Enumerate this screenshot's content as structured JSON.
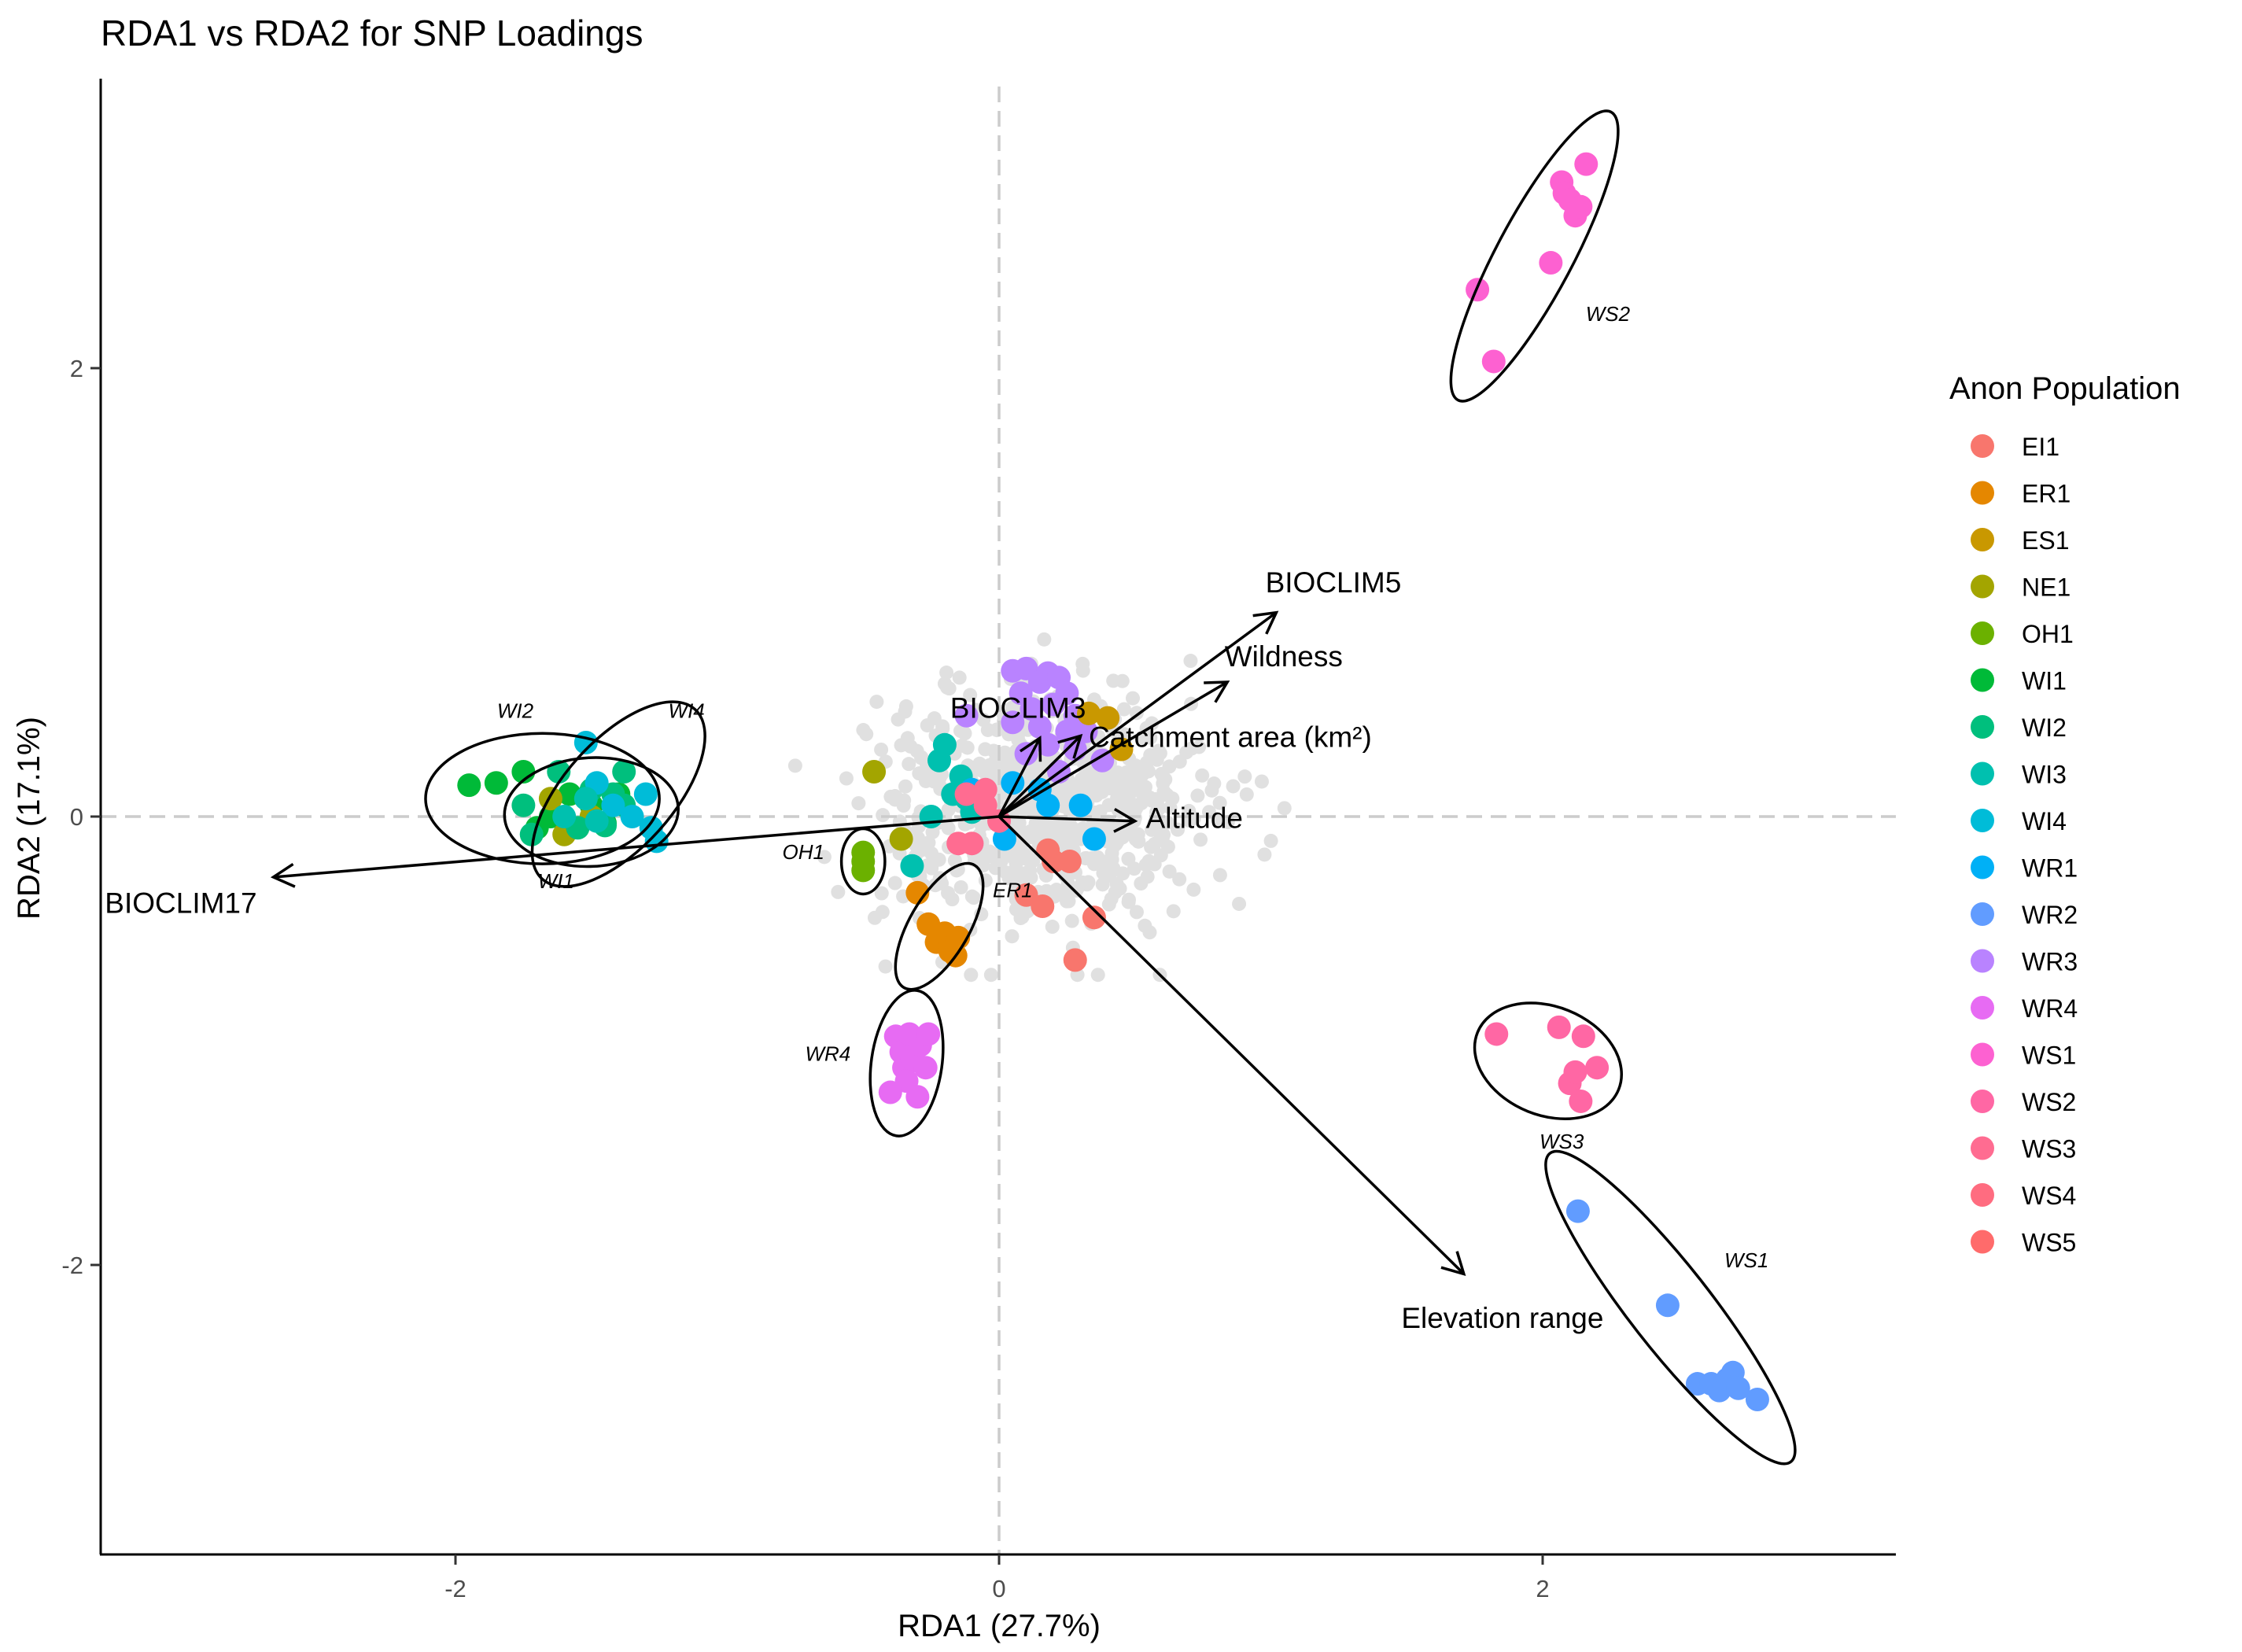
{
  "chart_data": {
    "type": "scatter",
    "title": "RDA1 vs RDA2 for SNP Loadings",
    "xlabel": "RDA1 (27.7%)",
    "ylabel": "RDA2 (17.1%)",
    "xlim": [
      -3.3,
      3.3
    ],
    "ylim": [
      -3.3,
      3.3
    ],
    "xticks": [
      -2,
      0,
      2
    ],
    "yticks": [
      -2,
      0,
      2
    ],
    "xtick_labels": [
      "-2",
      "0",
      "2"
    ],
    "ytick_labels": [
      "-2",
      "0",
      "2"
    ],
    "reference_lines": [
      {
        "axis": "x",
        "value": 0,
        "style": "dashed"
      },
      {
        "axis": "y",
        "value": 0,
        "style": "dashed"
      }
    ],
    "grid": false,
    "legend": {
      "title": "Anon Population",
      "position": "right",
      "entries": [
        {
          "name": "EI1",
          "color": "#F8766D"
        },
        {
          "name": "ER1",
          "color": "#E58700"
        },
        {
          "name": "ES1",
          "color": "#C99800"
        },
        {
          "name": "NE1",
          "color": "#A3A500"
        },
        {
          "name": "OH1",
          "color": "#6BB100"
        },
        {
          "name": "WI1",
          "color": "#00BA38"
        },
        {
          "name": "WI2",
          "color": "#00BF7D"
        },
        {
          "name": "WI3",
          "color": "#00C0AF"
        },
        {
          "name": "WI4",
          "color": "#00BCD8"
        },
        {
          "name": "WR1",
          "color": "#00B0F6"
        },
        {
          "name": "WR2",
          "color": "#619CFF"
        },
        {
          "name": "WR3",
          "color": "#B983FF"
        },
        {
          "name": "WR4",
          "color": "#E76BF3"
        },
        {
          "name": "WS1",
          "color": "#FD61D1"
        },
        {
          "name": "WS2",
          "color": "#FF67A4"
        },
        {
          "name": "WS3",
          "color": "#FF6C91"
        },
        {
          "name": "WS4",
          "color": "#FF6C80"
        },
        {
          "name": "WS5",
          "color": "#FF6B6B"
        }
      ]
    },
    "snp_cloud": {
      "color": "#E0E0E0",
      "center": [
        0.15,
        0.05
      ],
      "spread": [
        0.3,
        0.28
      ],
      "count": 700
    },
    "points": [
      {
        "group": "WI1",
        "x": -1.95,
        "y": 0.14
      },
      {
        "group": "WI1",
        "x": -1.85,
        "y": 0.15
      },
      {
        "group": "WI1",
        "x": -1.75,
        "y": 0.2
      },
      {
        "group": "WI1",
        "x": -1.7,
        "y": -0.05
      },
      {
        "group": "WI1",
        "x": -1.65,
        "y": 0.0
      },
      {
        "group": "WI1",
        "x": -1.58,
        "y": 0.1
      },
      {
        "group": "WI1",
        "x": -1.5,
        "y": 0.05
      },
      {
        "group": "WI1",
        "x": -1.45,
        "y": -0.03
      },
      {
        "group": "WI1",
        "x": -1.4,
        "y": 0.1
      },
      {
        "group": "NE1",
        "x": -1.65,
        "y": 0.08
      },
      {
        "group": "NE1",
        "x": -1.6,
        "y": -0.08
      },
      {
        "group": "NE1",
        "x": -1.5,
        "y": 0.0
      },
      {
        "group": "WI2",
        "x": -1.75,
        "y": 0.05
      },
      {
        "group": "WI2",
        "x": -1.72,
        "y": -0.08
      },
      {
        "group": "WI2",
        "x": -1.62,
        "y": 0.2
      },
      {
        "group": "WI2",
        "x": -1.55,
        "y": -0.05
      },
      {
        "group": "WI2",
        "x": -1.5,
        "y": 0.12
      },
      {
        "group": "WI2",
        "x": -1.45,
        "y": -0.04
      },
      {
        "group": "WI2",
        "x": -1.42,
        "y": 0.1
      },
      {
        "group": "WI2",
        "x": -1.38,
        "y": 0.05
      },
      {
        "group": "WI2",
        "x": -1.38,
        "y": 0.2
      },
      {
        "group": "WI4",
        "x": -1.52,
        "y": 0.33
      },
      {
        "group": "WI4",
        "x": -1.48,
        "y": 0.15
      },
      {
        "group": "WI4",
        "x": -1.42,
        "y": 0.05
      },
      {
        "group": "WI4",
        "x": -1.35,
        "y": 0.0
      },
      {
        "group": "WI4",
        "x": -1.3,
        "y": 0.1
      },
      {
        "group": "WI4",
        "x": -1.28,
        "y": -0.05
      },
      {
        "group": "WI4",
        "x": -1.26,
        "y": -0.11
      },
      {
        "group": "WI3",
        "x": -1.6,
        "y": 0.0
      },
      {
        "group": "WI3",
        "x": -1.52,
        "y": 0.08
      },
      {
        "group": "WI3",
        "x": -1.48,
        "y": -0.02
      },
      {
        "group": "OH1",
        "x": -0.5,
        "y": -0.16
      },
      {
        "group": "OH1",
        "x": -0.5,
        "y": -0.2
      },
      {
        "group": "OH1",
        "x": -0.5,
        "y": -0.24
      },
      {
        "group": "NE1",
        "x": -0.46,
        "y": 0.2
      },
      {
        "group": "NE1",
        "x": -0.36,
        "y": -0.1
      },
      {
        "group": "WI3",
        "x": -0.32,
        "y": -0.22
      },
      {
        "group": "WI3",
        "x": -0.25,
        "y": 0.0
      },
      {
        "group": "WI3",
        "x": -0.22,
        "y": 0.25
      },
      {
        "group": "WI3",
        "x": -0.2,
        "y": 0.32
      },
      {
        "group": "WI3",
        "x": -0.17,
        "y": 0.1
      },
      {
        "group": "WI3",
        "x": -0.14,
        "y": 0.18
      },
      {
        "group": "WI3",
        "x": -0.12,
        "y": 0.08
      },
      {
        "group": "WI3",
        "x": -0.1,
        "y": 0.02
      },
      {
        "group": "ER1",
        "x": -0.3,
        "y": -0.34
      },
      {
        "group": "ER1",
        "x": -0.26,
        "y": -0.48
      },
      {
        "group": "ER1",
        "x": -0.23,
        "y": -0.56
      },
      {
        "group": "ER1",
        "x": -0.2,
        "y": -0.52
      },
      {
        "group": "ER1",
        "x": -0.18,
        "y": -0.6
      },
      {
        "group": "ER1",
        "x": -0.16,
        "y": -0.62
      },
      {
        "group": "ER1",
        "x": -0.15,
        "y": -0.54
      },
      {
        "group": "WR4",
        "x": -0.38,
        "y": -0.98
      },
      {
        "group": "WR4",
        "x": -0.36,
        "y": -1.05
      },
      {
        "group": "WR4",
        "x": -0.35,
        "y": -1.12
      },
      {
        "group": "WR4",
        "x": -0.34,
        "y": -1.18
      },
      {
        "group": "WR4",
        "x": -0.33,
        "y": -0.97
      },
      {
        "group": "WR4",
        "x": -0.32,
        "y": -1.08
      },
      {
        "group": "WR4",
        "x": -0.3,
        "y": -1.25
      },
      {
        "group": "WR4",
        "x": -0.29,
        "y": -1.02
      },
      {
        "group": "WR4",
        "x": -0.27,
        "y": -1.12
      },
      {
        "group": "WR4",
        "x": -0.26,
        "y": -0.97
      },
      {
        "group": "WR4",
        "x": -0.4,
        "y": -1.23
      },
      {
        "group": "WR3",
        "x": 0.05,
        "y": 0.65
      },
      {
        "group": "WR3",
        "x": 0.1,
        "y": 0.66
      },
      {
        "group": "WR3",
        "x": 0.15,
        "y": 0.6
      },
      {
        "group": "WR3",
        "x": 0.18,
        "y": 0.64
      },
      {
        "group": "WR3",
        "x": 0.22,
        "y": 0.62
      },
      {
        "group": "WR3",
        "x": 0.25,
        "y": 0.55
      },
      {
        "group": "WR3",
        "x": 0.08,
        "y": 0.55
      },
      {
        "group": "WR3",
        "x": 0.12,
        "y": 0.48
      },
      {
        "group": "WR3",
        "x": 0.2,
        "y": 0.5
      },
      {
        "group": "WR3",
        "x": 0.28,
        "y": 0.45
      },
      {
        "group": "WR3",
        "x": 0.15,
        "y": 0.4
      },
      {
        "group": "WR3",
        "x": 0.25,
        "y": 0.38
      },
      {
        "group": "WR3",
        "x": 0.32,
        "y": 0.38
      },
      {
        "group": "WR3",
        "x": 0.05,
        "y": 0.42
      },
      {
        "group": "WR3",
        "x": -0.12,
        "y": 0.45
      },
      {
        "group": "WR3",
        "x": 0.1,
        "y": 0.28
      },
      {
        "group": "WR3",
        "x": 0.18,
        "y": 0.32
      },
      {
        "group": "WR3",
        "x": 0.28,
        "y": 0.3
      },
      {
        "group": "WR3",
        "x": 0.38,
        "y": 0.25
      },
      {
        "group": "WR3",
        "x": 0.22,
        "y": 0.2
      },
      {
        "group": "ES1",
        "x": 0.33,
        "y": 0.46
      },
      {
        "group": "ES1",
        "x": 0.4,
        "y": 0.44
      },
      {
        "group": "ES1",
        "x": 0.45,
        "y": 0.3
      },
      {
        "group": "WR1",
        "x": 0.05,
        "y": 0.15
      },
      {
        "group": "WR1",
        "x": 0.15,
        "y": 0.12
      },
      {
        "group": "WR1",
        "x": 0.18,
        "y": 0.05
      },
      {
        "group": "WR1",
        "x": 0.3,
        "y": 0.05
      },
      {
        "group": "WR1",
        "x": 0.35,
        "y": -0.1
      },
      {
        "group": "WR1",
        "x": 0.02,
        "y": -0.1
      },
      {
        "group": "WR1",
        "x": -0.1,
        "y": 0.12
      },
      {
        "group": "WS3",
        "x": -0.12,
        "y": 0.1
      },
      {
        "group": "WS3",
        "x": -0.05,
        "y": 0.12
      },
      {
        "group": "WS3",
        "x": -0.05,
        "y": 0.05
      },
      {
        "group": "WS3",
        "x": 0.0,
        "y": -0.02
      },
      {
        "group": "WS3",
        "x": -0.15,
        "y": -0.12
      },
      {
        "group": "WS3",
        "x": -0.1,
        "y": -0.12
      },
      {
        "group": "EI1",
        "x": 0.18,
        "y": -0.15
      },
      {
        "group": "EI1",
        "x": 0.2,
        "y": -0.2
      },
      {
        "group": "EI1",
        "x": 0.26,
        "y": -0.2
      },
      {
        "group": "EI1",
        "x": 0.1,
        "y": -0.35
      },
      {
        "group": "EI1",
        "x": 0.16,
        "y": -0.4
      },
      {
        "group": "EI1",
        "x": 0.35,
        "y": -0.45
      },
      {
        "group": "EI1",
        "x": 0.28,
        "y": -0.64
      },
      {
        "group": "WS1",
        "x": 1.76,
        "y": 2.35
      },
      {
        "group": "WS1",
        "x": 1.82,
        "y": 2.03
      },
      {
        "group": "WS1",
        "x": 2.03,
        "y": 2.47
      },
      {
        "group": "WS1",
        "x": 2.07,
        "y": 2.83
      },
      {
        "group": "WS1",
        "x": 2.08,
        "y": 2.78
      },
      {
        "group": "WS1",
        "x": 2.1,
        "y": 2.75
      },
      {
        "group": "WS1",
        "x": 2.12,
        "y": 2.68
      },
      {
        "group": "WS1",
        "x": 2.14,
        "y": 2.72
      },
      {
        "group": "WS1",
        "x": 2.16,
        "y": 2.91
      },
      {
        "group": "WS2",
        "x": 1.83,
        "y": -0.97
      },
      {
        "group": "WS2",
        "x": 2.06,
        "y": -0.94
      },
      {
        "group": "WS2",
        "x": 2.1,
        "y": -1.19
      },
      {
        "group": "WS2",
        "x": 2.12,
        "y": -1.14
      },
      {
        "group": "WS2",
        "x": 2.15,
        "y": -0.98
      },
      {
        "group": "WS2",
        "x": 2.2,
        "y": -1.12
      },
      {
        "group": "WS2",
        "x": 2.14,
        "y": -1.27
      },
      {
        "group": "WR2",
        "x": 2.13,
        "y": -1.76
      },
      {
        "group": "WR2",
        "x": 2.46,
        "y": -2.18
      },
      {
        "group": "WR2",
        "x": 2.57,
        "y": -2.53
      },
      {
        "group": "WR2",
        "x": 2.62,
        "y": -2.53
      },
      {
        "group": "WR2",
        "x": 2.65,
        "y": -2.56
      },
      {
        "group": "WR2",
        "x": 2.68,
        "y": -2.51
      },
      {
        "group": "WR2",
        "x": 2.7,
        "y": -2.48
      },
      {
        "group": "WR2",
        "x": 2.72,
        "y": -2.55
      },
      {
        "group": "WR2",
        "x": 2.79,
        "y": -2.6
      }
    ],
    "ellipses": [
      {
        "label": "WI2",
        "cx": -1.68,
        "cy": 0.08,
        "rx": 0.43,
        "ry": 0.24,
        "rot": 0
      },
      {
        "label": "WI1",
        "cx": -1.5,
        "cy": 0.02,
        "rx": 0.32,
        "ry": 0.2,
        "rot": -3
      },
      {
        "label": "WI4",
        "cx": -1.4,
        "cy": 0.1,
        "rx": 0.42,
        "ry": 0.2,
        "rot": -48
      },
      {
        "label": "OH1",
        "cx": -0.5,
        "cy": -0.2,
        "rx": 0.08,
        "ry": 0.12,
        "rot": 0
      },
      {
        "label": "ER1",
        "cx": -0.22,
        "cy": -0.49,
        "rx": 0.26,
        "ry": 0.11,
        "rot": -60
      },
      {
        "label": "WR4",
        "cx": -0.34,
        "cy": -1.1,
        "rx": 0.27,
        "ry": 0.13,
        "rot": -82
      },
      {
        "label": "WS2",
        "cx": 1.97,
        "cy": 2.5,
        "rx": 0.6,
        "ry": 0.14,
        "rot": -62
      },
      {
        "label": "WS3",
        "cx": 2.02,
        "cy": -1.09,
        "rx": 0.28,
        "ry": 0.2,
        "rot": 22
      },
      {
        "label": "WS1",
        "cx": 2.47,
        "cy": -2.19,
        "rx": 0.72,
        "ry": 0.15,
        "rot": 52
      }
    ],
    "ellipse_labels": [
      {
        "text": "WI2",
        "x": -1.78,
        "y": 0.44
      },
      {
        "text": "WI4",
        "x": -1.15,
        "y": 0.44
      },
      {
        "text": "WI1",
        "x": -1.63,
        "y": -0.32
      },
      {
        "text": "OH1",
        "x": -0.72,
        "y": -0.19
      },
      {
        "text": "ER1",
        "x": 0.05,
        "y": -0.36
      },
      {
        "text": "WR4",
        "x": -0.63,
        "y": -1.09
      },
      {
        "text": "WS2",
        "x": 2.24,
        "y": 2.21
      },
      {
        "text": "WS3",
        "x": 2.07,
        "y": -1.48
      },
      {
        "text": "WS1",
        "x": 2.75,
        "y": -2.01
      }
    ],
    "vectors": [
      {
        "label": "BIOCLIM5",
        "x": 1.02,
        "y": 0.91,
        "lx": 0.98,
        "ly": 1.0,
        "anchor": "start"
      },
      {
        "label": "Wildness",
        "x": 0.84,
        "y": 0.6,
        "lx": 0.83,
        "ly": 0.67,
        "anchor": "start"
      },
      {
        "label": "BIOCLIM3",
        "x": 0.15,
        "y": 0.35,
        "lx": -0.18,
        "ly": 0.44,
        "anchor": "start"
      },
      {
        "label": "Catchment area (km²)",
        "x": 0.3,
        "y": 0.36,
        "lx": 0.33,
        "ly": 0.31,
        "anchor": "start"
      },
      {
        "label": "Altitude",
        "x": 0.5,
        "y": -0.02,
        "lx": 0.54,
        "ly": -0.05,
        "anchor": "start"
      },
      {
        "label": "BIOCLIM17",
        "x": -2.67,
        "y": -0.27,
        "lx": -3.29,
        "ly": -0.43,
        "anchor": "start"
      },
      {
        "label": "Elevation range",
        "x": 1.71,
        "y": -2.04,
        "lx": 1.48,
        "ly": -2.28,
        "anchor": "start"
      }
    ]
  }
}
